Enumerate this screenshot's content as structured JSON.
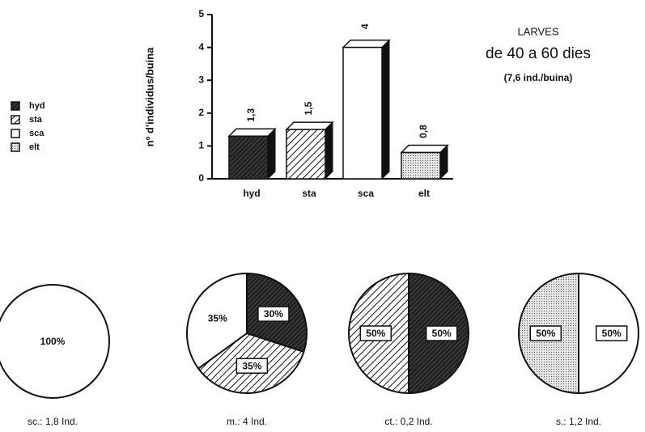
{
  "chart_data": [
    {
      "type": "bar",
      "title": [
        "LARVES",
        "de 40 a 60 dies",
        "(7,6 ind./buina)"
      ],
      "y_label": "nº d'individus/buina",
      "categories": [
        "hyd",
        "sta",
        "sca",
        "elt"
      ],
      "values": [
        1.3,
        1.5,
        4,
        0.8
      ],
      "value_labels": [
        "1,3",
        "1,5",
        "4",
        "0,8"
      ],
      "patterns": [
        "dark",
        "hatch",
        "white",
        "dots"
      ],
      "ylim": [
        0,
        5
      ],
      "yticks": [
        0,
        1,
        2,
        3,
        4,
        5
      ]
    },
    {
      "type": "pie",
      "title": "sc.: 1,8 Ind.",
      "values": [
        100
      ],
      "value_labels": [
        "100%"
      ],
      "patterns": [
        "white"
      ]
    },
    {
      "type": "pie",
      "title": "m.: 4 Ind.",
      "values": [
        30,
        35,
        35
      ],
      "value_labels": [
        "30%",
        "35%",
        "35%"
      ],
      "patterns": [
        "dark",
        "hatch",
        "white"
      ]
    },
    {
      "type": "pie",
      "title": "ct.: 0,2 Ind.",
      "values": [
        50,
        50
      ],
      "value_labels": [
        "50%",
        "50%"
      ],
      "patterns": [
        "dark",
        "hatch"
      ]
    },
    {
      "type": "pie",
      "title": "s.: 1,2 Ind.",
      "values": [
        50,
        50
      ],
      "value_labels": [
        "50%",
        "50%"
      ],
      "patterns": [
        "white",
        "dots"
      ]
    }
  ]
}
